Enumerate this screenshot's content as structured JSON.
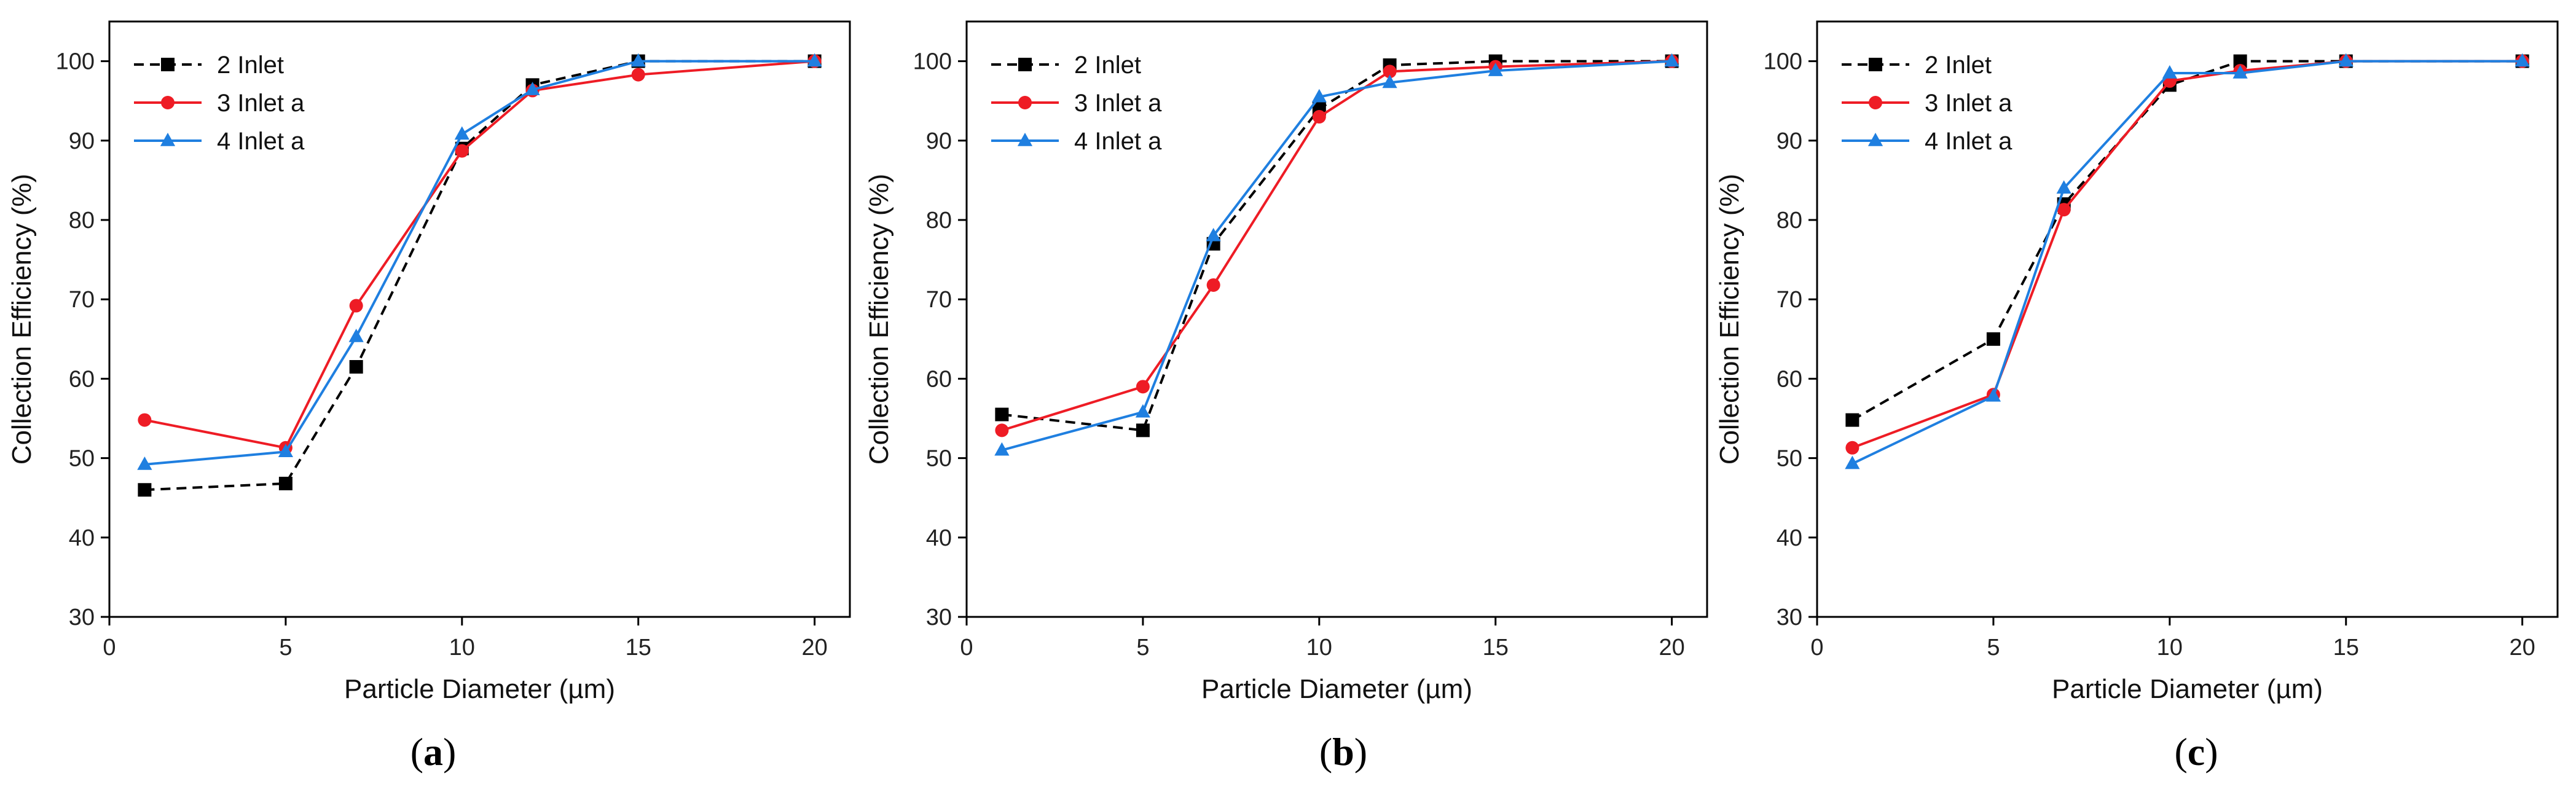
{
  "chart_data": [
    {
      "type": "line",
      "panel_label": "(a)",
      "panel_letter": "a",
      "xlabel": "Particle Diameter (µm)",
      "ylabel": "Collection Efficiency (%)",
      "xlim": [
        0,
        21
      ],
      "ylim": [
        30,
        105
      ],
      "xticks": [
        0,
        5,
        10,
        15,
        20
      ],
      "yticks": [
        30,
        40,
        50,
        60,
        70,
        80,
        90,
        100
      ],
      "x": [
        1,
        5,
        7,
        10,
        12,
        15,
        20
      ],
      "legend_position": "top-left",
      "series": [
        {
          "name": "2 Inlet",
          "color": "#000000",
          "line": "dashed",
          "marker": "square",
          "values": [
            46.0,
            46.8,
            61.5,
            89.0,
            97.0,
            100.0,
            100.0
          ]
        },
        {
          "name": "3 Inlet a",
          "color": "#ee1c25",
          "line": "solid",
          "marker": "circle",
          "values": [
            54.8,
            51.3,
            69.2,
            88.7,
            96.3,
            98.3,
            100.0
          ]
        },
        {
          "name": "4 Inlet a",
          "color": "#1f7fe0",
          "line": "solid",
          "marker": "triangle",
          "values": [
            49.2,
            50.8,
            65.3,
            90.8,
            96.4,
            100.0,
            100.0
          ]
        }
      ]
    },
    {
      "type": "line",
      "panel_label": "(b)",
      "panel_letter": "b",
      "xlabel": "Particle Diameter (µm)",
      "ylabel": "Collection Efficiency (%)",
      "xlim": [
        0,
        21
      ],
      "ylim": [
        30,
        105
      ],
      "xticks": [
        0,
        5,
        10,
        15,
        20
      ],
      "yticks": [
        30,
        40,
        50,
        60,
        70,
        80,
        90,
        100
      ],
      "x": [
        1,
        5,
        7,
        10,
        12,
        15,
        20
      ],
      "legend_position": "top-left",
      "series": [
        {
          "name": "2 Inlet",
          "color": "#000000",
          "line": "dashed",
          "marker": "square",
          "values": [
            55.5,
            53.5,
            77.0,
            94.0,
            99.5,
            100.0,
            100.0
          ]
        },
        {
          "name": "3 Inlet a",
          "color": "#ee1c25",
          "line": "solid",
          "marker": "circle",
          "values": [
            53.5,
            59.0,
            71.8,
            93.0,
            98.7,
            99.3,
            100.0
          ]
        },
        {
          "name": "4 Inlet a",
          "color": "#1f7fe0",
          "line": "solid",
          "marker": "triangle",
          "values": [
            51.0,
            55.8,
            78.0,
            95.5,
            97.3,
            98.8,
            100.0
          ]
        }
      ]
    },
    {
      "type": "line",
      "panel_label": "(c)",
      "panel_letter": "c",
      "xlabel": "Particle Diameter (µm)",
      "ylabel": "Collection Efficiency (%)",
      "xlim": [
        0,
        21
      ],
      "ylim": [
        30,
        105
      ],
      "xticks": [
        0,
        5,
        10,
        15,
        20
      ],
      "yticks": [
        30,
        40,
        50,
        60,
        70,
        80,
        90,
        100
      ],
      "x": [
        1,
        5,
        7,
        10,
        12,
        15,
        20
      ],
      "legend_position": "top-left",
      "series": [
        {
          "name": "2 Inlet",
          "color": "#000000",
          "line": "dashed",
          "marker": "square",
          "values": [
            54.8,
            65.0,
            82.0,
            97.0,
            100.0,
            100.0,
            100.0
          ]
        },
        {
          "name": "3 Inlet a",
          "color": "#ee1c25",
          "line": "solid",
          "marker": "circle",
          "values": [
            51.3,
            58.0,
            81.3,
            97.5,
            98.8,
            100.0,
            100.0
          ]
        },
        {
          "name": "4 Inlet a",
          "color": "#1f7fe0",
          "line": "solid",
          "marker": "triangle",
          "values": [
            49.3,
            57.8,
            84.0,
            98.5,
            98.5,
            100.0,
            100.0
          ]
        }
      ]
    }
  ]
}
